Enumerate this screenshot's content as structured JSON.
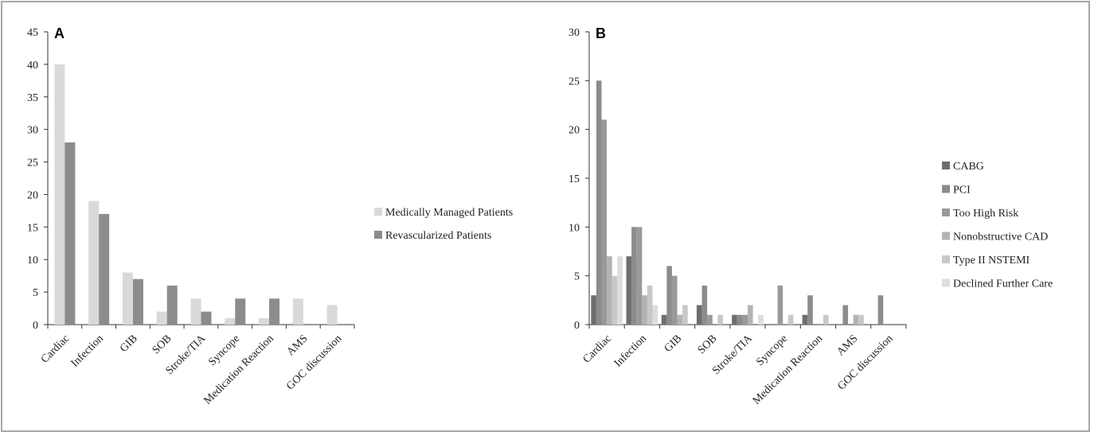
{
  "chart_data": [
    {
      "type": "bar",
      "panel_label": "A",
      "categories": [
        "Cardiac",
        "Infection",
        "GIB",
        "SOB",
        "Stroke/TIA",
        "Syncope",
        "Medication Reaction",
        "AMS",
        "GOC discussion"
      ],
      "series": [
        {
          "name": "Medically Managed Patients",
          "color": "#d9d9d9",
          "values": [
            40,
            19,
            8,
            2,
            4,
            1,
            1,
            4,
            3
          ]
        },
        {
          "name": "Revascularized Patients",
          "color": "#8c8c8c",
          "values": [
            28,
            17,
            7,
            6,
            2,
            4,
            4,
            0,
            0
          ]
        }
      ],
      "yticks": [
        "0",
        "5",
        "10",
        "15",
        "20",
        "25",
        "30",
        "35",
        "40",
        "45"
      ],
      "ylim": [
        0,
        45
      ],
      "legend_position": "right"
    },
    {
      "type": "bar",
      "panel_label": "B",
      "categories": [
        "Cardiac",
        "Infection",
        "GIB",
        "SOB",
        "Stroke/TIA",
        "Syncope",
        "Medication Reaction",
        "AMS",
        "GOC discussion"
      ],
      "series": [
        {
          "name": "CABG",
          "color": "#6e6e6e",
          "values": [
            3,
            7,
            1,
            2,
            1,
            0,
            1,
            0,
            0
          ]
        },
        {
          "name": "PCI",
          "color": "#8c8c8c",
          "values": [
            25,
            10,
            6,
            4,
            1,
            0,
            3,
            2,
            3
          ]
        },
        {
          "name": "Too High Risk",
          "color": "#999999",
          "values": [
            21,
            10,
            5,
            1,
            1,
            4,
            0,
            0,
            0
          ]
        },
        {
          "name": "Nonobstructive CAD",
          "color": "#b3b3b3",
          "values": [
            7,
            3,
            1,
            0,
            2,
            0,
            0,
            1,
            0
          ]
        },
        {
          "name": "Type II NSTEMI",
          "color": "#c8c8c8",
          "values": [
            5,
            4,
            2,
            1,
            0,
            1,
            1,
            1,
            0
          ]
        },
        {
          "name": "Declined Further Care",
          "color": "#dddddd",
          "values": [
            7,
            2,
            0,
            0,
            1,
            0,
            0,
            0,
            0
          ]
        }
      ],
      "yticks": [
        "0",
        "5",
        "10",
        "15",
        "20",
        "25",
        "30"
      ],
      "ylim": [
        0,
        30
      ],
      "legend_position": "right"
    }
  ]
}
